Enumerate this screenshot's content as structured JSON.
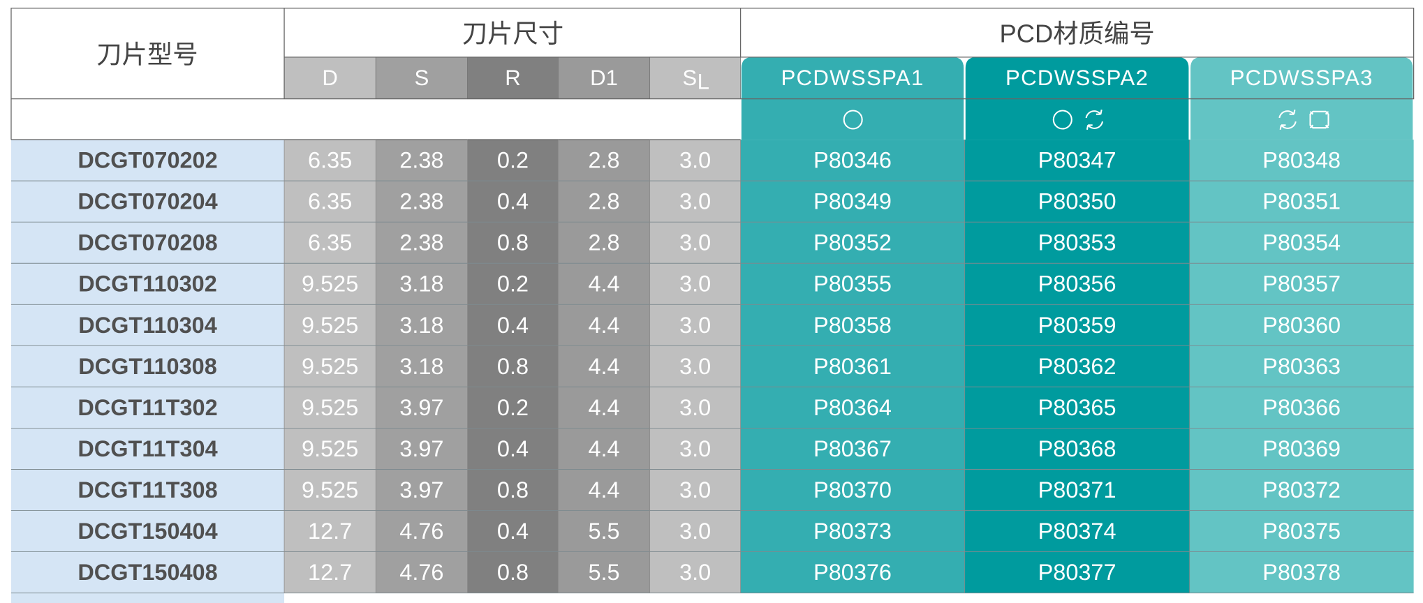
{
  "header": {
    "model": "刀片型号",
    "size_group": "刀片尺寸",
    "pcd_group": "PCD材质编号"
  },
  "size_columns": [
    "D",
    "S",
    "R",
    "D1",
    {
      "text": "S",
      "sub": "L"
    }
  ],
  "pcd_columns": [
    "PCDWSSPA1",
    "PCDWSSPA2",
    "PCDWSSPA3"
  ],
  "rows": [
    [
      "DCGT070202",
      "6.35",
      "2.38",
      "0.2",
      "2.8",
      "3.0",
      "P80346",
      "P80347",
      "P80348"
    ],
    [
      "DCGT070204",
      "6.35",
      "2.38",
      "0.4",
      "2.8",
      "3.0",
      "P80349",
      "P80350",
      "P80351"
    ],
    [
      "DCGT070208",
      "6.35",
      "2.38",
      "0.8",
      "2.8",
      "3.0",
      "P80352",
      "P80353",
      "P80354"
    ],
    [
      "DCGT110302",
      "9.525",
      "3.18",
      "0.2",
      "4.4",
      "3.0",
      "P80355",
      "P80356",
      "P80357"
    ],
    [
      "DCGT110304",
      "9.525",
      "3.18",
      "0.4",
      "4.4",
      "3.0",
      "P80358",
      "P80359",
      "P80360"
    ],
    [
      "DCGT110308",
      "9.525",
      "3.18",
      "0.8",
      "4.4",
      "3.0",
      "P80361",
      "P80362",
      "P80363"
    ],
    [
      "DCGT11T302",
      "9.525",
      "3.97",
      "0.2",
      "4.4",
      "3.0",
      "P80364",
      "P80365",
      "P80366"
    ],
    [
      "DCGT11T304",
      "9.525",
      "3.97",
      "0.4",
      "4.4",
      "3.0",
      "P80367",
      "P80368",
      "P80369"
    ],
    [
      "DCGT11T308",
      "9.525",
      "3.97",
      "0.8",
      "4.4",
      "3.0",
      "P80370",
      "P80371",
      "P80372"
    ],
    [
      "DCGT150404",
      "12.7",
      "4.76",
      "0.4",
      "5.5",
      "3.0",
      "P80373",
      "P80374",
      "P80375"
    ],
    [
      "DCGT150408",
      "12.7",
      "4.76",
      "0.8",
      "5.5",
      "3.0",
      "P80376",
      "P80377",
      "P80378"
    ]
  ]
}
